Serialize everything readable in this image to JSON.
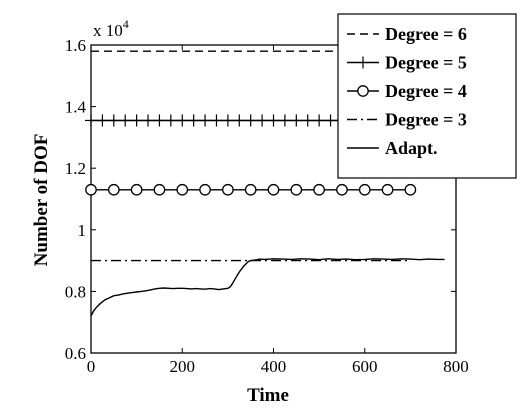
{
  "chart_data": {
    "type": "line",
    "title": "",
    "xlabel": "Time",
    "ylabel": "Number of DOF",
    "xlim": [
      0,
      800
    ],
    "ylim": [
      0.6,
      1.6
    ],
    "xticks": [
      0,
      200,
      400,
      600,
      800
    ],
    "yticks": [
      0.6,
      0.8,
      1,
      1.2,
      1.4,
      1.6
    ],
    "xtick_labels": [
      "0",
      "200",
      "400",
      "600",
      "800"
    ],
    "ytick_labels": [
      "0.6",
      "0.8",
      "1",
      "1.2",
      "1.4",
      "1.6"
    ],
    "y_multiplier": "x 10",
    "y_multiplier_exp": "4",
    "grid": false,
    "legend_position": "top-right",
    "series": [
      {
        "name": "Degree = 6",
        "style": "dashed",
        "x": [
          0,
          700
        ],
        "y": [
          1.58,
          1.58
        ]
      },
      {
        "name": "Degree = 5",
        "style": "solid-plus-markers",
        "x": [
          0,
          700
        ],
        "y": [
          1.355,
          1.355
        ],
        "marker_x": [
          0,
          25,
          50,
          75,
          100,
          125,
          150,
          175,
          200,
          225,
          250,
          275,
          300,
          325,
          350,
          375,
          400,
          425,
          450,
          475,
          500,
          525,
          550,
          575,
          600,
          625,
          650,
          675,
          700
        ]
      },
      {
        "name": "Degree = 4",
        "style": "solid-circle-markers",
        "x": [
          0,
          700
        ],
        "y": [
          1.13,
          1.13
        ],
        "marker_x": [
          0,
          50,
          100,
          150,
          200,
          250,
          300,
          350,
          400,
          450,
          500,
          550,
          600,
          650,
          700
        ]
      },
      {
        "name": "Degree = 3",
        "style": "dash-dot",
        "x": [
          0,
          700
        ],
        "y": [
          0.9,
          0.9
        ]
      },
      {
        "name": "Adapt.",
        "style": "solid",
        "x": [
          0,
          5,
          10,
          20,
          30,
          40,
          50,
          60,
          70,
          80,
          90,
          100,
          110,
          120,
          130,
          140,
          150,
          160,
          170,
          180,
          190,
          200,
          210,
          220,
          230,
          240,
          250,
          260,
          270,
          280,
          290,
          300,
          305,
          310,
          315,
          320,
          325,
          330,
          335,
          340,
          345,
          350,
          360,
          370,
          380,
          400,
          420,
          440,
          460,
          480,
          500,
          520,
          540,
          560,
          580,
          600,
          620,
          640,
          660,
          680,
          700,
          720,
          740,
          760,
          775
        ],
        "y": [
          0.72,
          0.735,
          0.745,
          0.76,
          0.772,
          0.779,
          0.786,
          0.788,
          0.792,
          0.794,
          0.796,
          0.798,
          0.8,
          0.802,
          0.805,
          0.808,
          0.81,
          0.811,
          0.81,
          0.809,
          0.81,
          0.81,
          0.809,
          0.808,
          0.809,
          0.808,
          0.807,
          0.809,
          0.808,
          0.806,
          0.808,
          0.81,
          0.815,
          0.825,
          0.838,
          0.851,
          0.863,
          0.873,
          0.882,
          0.89,
          0.897,
          0.9,
          0.902,
          0.905,
          0.904,
          0.906,
          0.905,
          0.904,
          0.906,
          0.905,
          0.903,
          0.906,
          0.904,
          0.905,
          0.903,
          0.904,
          0.906,
          0.905,
          0.904,
          0.906,
          0.905,
          0.903,
          0.905,
          0.904,
          0.904
        ]
      }
    ]
  }
}
